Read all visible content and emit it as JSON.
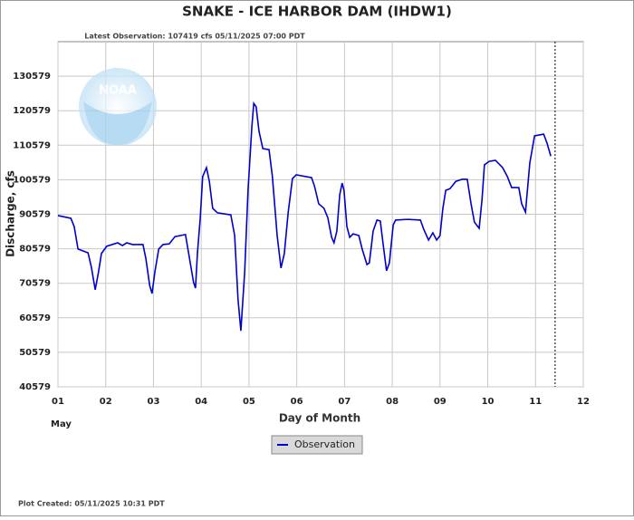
{
  "chart_data": {
    "type": "line",
    "title": "SNAKE - ICE HARBOR DAM  (IHDW1)",
    "subtitle": "Latest Observation: 107419 cfs 05/11/2025 07:00 PDT",
    "ylabel": "Discharge, cfs",
    "xlabel": "Day of Month",
    "month_label": "May",
    "footer": "Plot Created: 05/11/2025 10:31 PDT",
    "logo_text": "NOAA",
    "x": [
      1.0,
      1.27,
      1.34,
      1.42,
      1.63,
      1.7,
      1.78,
      1.85,
      1.91,
      2.02,
      2.25,
      2.35,
      2.44,
      2.56,
      2.78,
      2.84,
      2.92,
      2.97,
      3.03,
      3.11,
      3.2,
      3.33,
      3.45,
      3.67,
      3.77,
      3.84,
      3.88,
      3.92,
      3.98,
      4.03,
      4.11,
      4.17,
      4.24,
      4.34,
      4.62,
      4.7,
      4.77,
      4.83,
      4.91,
      4.98,
      5.06,
      5.1,
      5.15,
      5.21,
      5.29,
      5.42,
      5.49,
      5.59,
      5.67,
      5.74,
      5.82,
      5.91,
      5.99,
      6.31,
      6.37,
      6.46,
      6.57,
      6.65,
      6.73,
      6.78,
      6.84,
      6.9,
      6.95,
      6.99,
      7.05,
      7.11,
      7.18,
      7.3,
      7.37,
      7.47,
      7.52,
      7.6,
      7.68,
      7.75,
      7.81,
      7.88,
      7.94,
      8.02,
      8.07,
      8.32,
      8.59,
      8.66,
      8.76,
      8.85,
      8.93,
      9.0,
      9.06,
      9.12,
      9.21,
      9.33,
      9.46,
      9.57,
      9.65,
      9.72,
      9.82,
      9.88,
      9.93,
      10.03,
      10.16,
      10.31,
      10.41,
      10.5,
      10.65,
      10.71,
      10.79,
      10.88,
      10.98,
      11.17,
      11.24,
      11.32
    ],
    "series": [
      {
        "name": "Observation",
        "color": "#0000cc",
        "values": [
          90200,
          89400,
          87000,
          80500,
          79400,
          75200,
          68700,
          73900,
          79200,
          81300,
          82300,
          81500,
          82300,
          81800,
          81800,
          77800,
          70000,
          67600,
          73900,
          80500,
          81800,
          82000,
          84100,
          84700,
          76500,
          70800,
          69200,
          79200,
          89600,
          101500,
          104100,
          100100,
          92300,
          91000,
          90400,
          84400,
          66000,
          56800,
          73900,
          97500,
          115900,
          122700,
          121700,
          114600,
          109600,
          109300,
          101500,
          84400,
          75000,
          79200,
          91000,
          100900,
          102000,
          101200,
          98800,
          93600,
          92300,
          89600,
          83900,
          82300,
          85700,
          96200,
          99600,
          97500,
          87000,
          83900,
          84900,
          84400,
          80500,
          76000,
          76500,
          85700,
          88900,
          88600,
          81800,
          74200,
          76500,
          87500,
          88900,
          89100,
          88900,
          86200,
          83100,
          85200,
          83100,
          84400,
          92300,
          97500,
          98000,
          100100,
          100700,
          100700,
          93600,
          88300,
          86500,
          94900,
          104900,
          105900,
          106200,
          104100,
          101500,
          98300,
          98300,
          93600,
          91200,
          105400,
          113300,
          113800,
          111200,
          107419
        ]
      }
    ],
    "now_x": 11.41,
    "xlim": [
      1,
      12
    ],
    "xticks": [
      {
        "value": 1,
        "label": "01"
      },
      {
        "value": 2,
        "label": "02"
      },
      {
        "value": 3,
        "label": "03"
      },
      {
        "value": 4,
        "label": "04"
      },
      {
        "value": 5,
        "label": "05"
      },
      {
        "value": 6,
        "label": "06"
      },
      {
        "value": 7,
        "label": "07"
      },
      {
        "value": 8,
        "label": "08"
      },
      {
        "value": 9,
        "label": "09"
      },
      {
        "value": 10,
        "label": "10"
      },
      {
        "value": 11,
        "label": "11"
      },
      {
        "value": 12,
        "label": "12"
      }
    ],
    "ylim": [
      40579,
      140579
    ],
    "yticks": [
      40579,
      50579,
      60579,
      70579,
      80579,
      90579,
      100579,
      110579,
      120579,
      130579
    ],
    "grid": true
  }
}
